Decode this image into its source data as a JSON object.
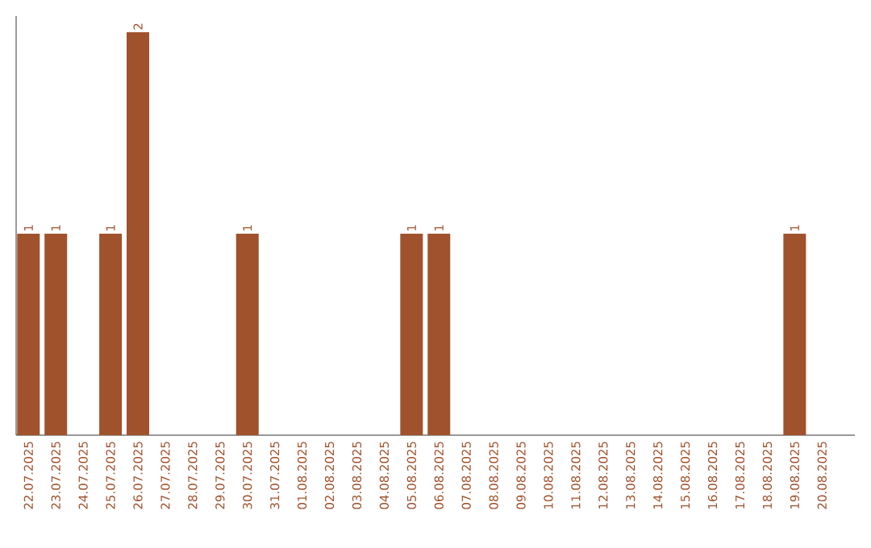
{
  "chart_data": {
    "type": "bar",
    "color": "#a0522d",
    "categories": [
      "22.07.2025",
      "23.07.2025",
      "24.07.2025",
      "25.07.2025",
      "26.07.2025",
      "27.07.2025",
      "28.07.2025",
      "29.07.2025",
      "30.07.2025",
      "31.07.2025",
      "01.08.2025",
      "02.08.2025",
      "03.08.2025",
      "04.08.2025",
      "05.08.2025",
      "06.08.2025",
      "07.08.2025",
      "08.08.2025",
      "09.08.2025",
      "10.08.2025",
      "11.08.2025",
      "12.08.2025",
      "13.08.2025",
      "14.08.2025",
      "15.08.2025",
      "16.08.2025",
      "17.08.2025",
      "18.08.2025",
      "19.08.2025",
      "20.08.2025"
    ],
    "values": [
      1,
      1,
      0,
      1,
      2,
      0,
      0,
      0,
      1,
      0,
      0,
      0,
      0,
      0,
      1,
      1,
      0,
      0,
      0,
      0,
      0,
      0,
      0,
      0,
      0,
      0,
      0,
      0,
      1,
      0
    ],
    "value_labels": [
      "1",
      "1",
      null,
      "1",
      "2",
      null,
      null,
      null,
      "1",
      null,
      null,
      null,
      null,
      null,
      "1",
      "1",
      null,
      null,
      null,
      null,
      null,
      null,
      null,
      null,
      null,
      null,
      null,
      null,
      "1",
      null
    ]
  }
}
